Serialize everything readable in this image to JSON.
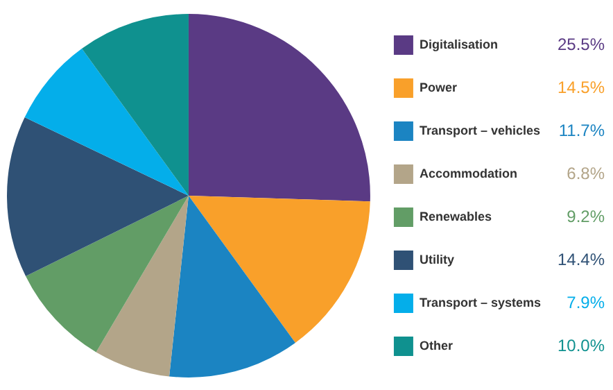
{
  "chart_data": {
    "type": "pie",
    "categories": [
      "Digitalisation",
      "Power",
      "Transport – vehicles",
      "Accommodation",
      "Renewables",
      "Utility",
      "Transport – systems",
      "Other"
    ],
    "values": [
      25.5,
      14.5,
      11.7,
      6.8,
      9.2,
      14.4,
      7.9,
      10.0
    ],
    "value_labels": [
      "25.5%",
      "14.5%",
      "11.7%",
      "6.8%",
      "9.2%",
      "14.4%",
      "7.9%",
      "10.0%"
    ],
    "colors": [
      "#5a3a84",
      "#f9a02a",
      "#1b84c2",
      "#b3a589",
      "#629d66",
      "#2f5175",
      "#04aeea",
      "#0f918f"
    ],
    "legend": "right"
  }
}
